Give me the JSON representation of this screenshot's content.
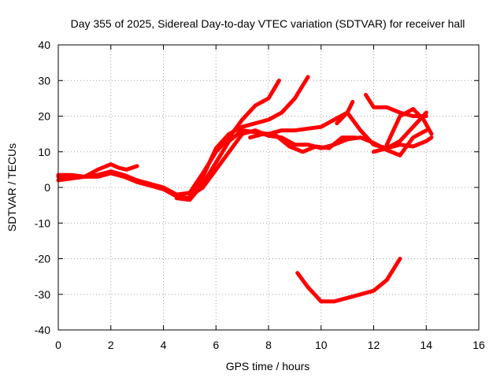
{
  "chart_data": {
    "type": "scatter",
    "title": "Day 355 of 2025, Sidereal Day-to-day VTEC variation (SDTVAR) for receiver hall",
    "xlabel": "GPS time / hours",
    "ylabel": "SDTVAR / TECUs",
    "xlim": [
      0,
      16
    ],
    "ylim": [
      -40,
      40
    ],
    "xticks": [
      0,
      2,
      4,
      6,
      8,
      10,
      12,
      14,
      16
    ],
    "yticks": [
      -40,
      -30,
      -20,
      -10,
      0,
      10,
      20,
      30,
      40
    ],
    "grid": true,
    "color": "#ff0000",
    "series": [
      {
        "name": "trace-1",
        "x": [
          0.0,
          0.5,
          1.0,
          1.5,
          2.0,
          2.5,
          3.0,
          3.5,
          4.0,
          4.5,
          5.0,
          5.5,
          6.0,
          6.5,
          7.0,
          7.5,
          8.0,
          8.4
        ],
        "y": [
          3.0,
          3.0,
          3.0,
          3.5,
          4.5,
          3.5,
          2.0,
          1.0,
          0.0,
          -2.0,
          -1.5,
          4.0,
          10.0,
          14.0,
          19.0,
          23.0,
          25.0,
          30.0
        ]
      },
      {
        "name": "trace-2",
        "x": [
          0.0,
          0.5,
          1.0,
          1.5,
          2.0,
          2.5,
          3.0,
          3.5,
          4.0,
          4.5,
          5.0,
          5.5,
          6.0,
          6.5,
          7.0,
          7.5,
          8.0,
          8.5,
          9.0,
          9.5
        ],
        "y": [
          2.0,
          2.5,
          3.0,
          3.0,
          4.0,
          3.0,
          1.5,
          0.5,
          -0.5,
          -2.5,
          -3.0,
          3.0,
          11.0,
          15.0,
          17.0,
          18.0,
          19.0,
          21.0,
          25.0,
          31.0
        ]
      },
      {
        "name": "trace-3",
        "x": [
          0.0,
          0.5,
          1.0,
          1.5,
          2.0,
          2.3,
          2.6,
          3.0
        ],
        "y": [
          3.5,
          3.5,
          3.0,
          5.0,
          6.5,
          5.5,
          5.0,
          6.0
        ]
      },
      {
        "name": "trace-4",
        "x": [
          4.5,
          5.0,
          5.5,
          6.0,
          6.5,
          7.0,
          7.5,
          8.0,
          8.5,
          9.0,
          9.5,
          10.0,
          10.5,
          11.0,
          11.5,
          12.0,
          12.5,
          13.0,
          13.5,
          14.0
        ],
        "y": [
          -3.0,
          -3.5,
          1.0,
          7.0,
          13.0,
          16.0,
          15.5,
          15.0,
          16.0,
          16.0,
          16.5,
          17.0,
          19.0,
          21.0,
          16.0,
          12.0,
          11.0,
          13.0,
          17.0,
          21.0
        ]
      },
      {
        "name": "trace-5",
        "x": [
          5.0,
          5.5,
          6.0,
          6.5,
          7.0,
          7.5,
          8.0,
          8.5,
          9.0,
          9.5,
          10.0,
          10.5,
          11.0,
          11.5,
          12.0,
          12.5,
          13.0,
          13.5,
          14.0
        ],
        "y": [
          -2.5,
          0.0,
          5.0,
          10.0,
          15.0,
          16.0,
          14.5,
          14.0,
          12.0,
          12.0,
          11.0,
          12.0,
          13.5,
          14.0,
          12.5,
          10.5,
          9.0,
          14.0,
          16.0
        ]
      },
      {
        "name": "trace-6",
        "x": [
          7.3,
          7.8,
          8.3,
          8.8,
          9.3,
          9.8,
          10.3,
          10.8,
          11.3
        ],
        "y": [
          14.0,
          15.0,
          14.5,
          11.5,
          10.0,
          11.5,
          11.0,
          14.0,
          14.0
        ]
      },
      {
        "name": "trace-7",
        "x": [
          10.6,
          11.0,
          11.2
        ],
        "y": [
          18.0,
          21.0,
          24.0
        ]
      },
      {
        "name": "trace-8",
        "x": [
          11.7,
          12.0,
          12.5,
          13.0,
          13.5,
          14.0
        ],
        "y": [
          26.0,
          22.5,
          22.5,
          21.0,
          20.0,
          20.0
        ]
      },
      {
        "name": "trace-9",
        "x": [
          12.5,
          13.0,
          13.5,
          13.9,
          14.2
        ],
        "y": [
          12.0,
          20.0,
          22.0,
          19.0,
          15.0
        ]
      },
      {
        "name": "trace-10",
        "x": [
          12.0,
          12.5,
          13.0,
          13.5,
          14.0,
          14.2
        ],
        "y": [
          10.0,
          11.0,
          12.0,
          11.5,
          13.0,
          14.0
        ]
      },
      {
        "name": "trace-11",
        "x": [
          9.1,
          9.5,
          10.0,
          10.5,
          11.0,
          11.5,
          12.0,
          12.5,
          13.0
        ],
        "y": [
          -24.0,
          -28.0,
          -32.0,
          -32.0,
          -31.0,
          -30.0,
          -29.0,
          -26.0,
          -20.0
        ]
      }
    ]
  }
}
